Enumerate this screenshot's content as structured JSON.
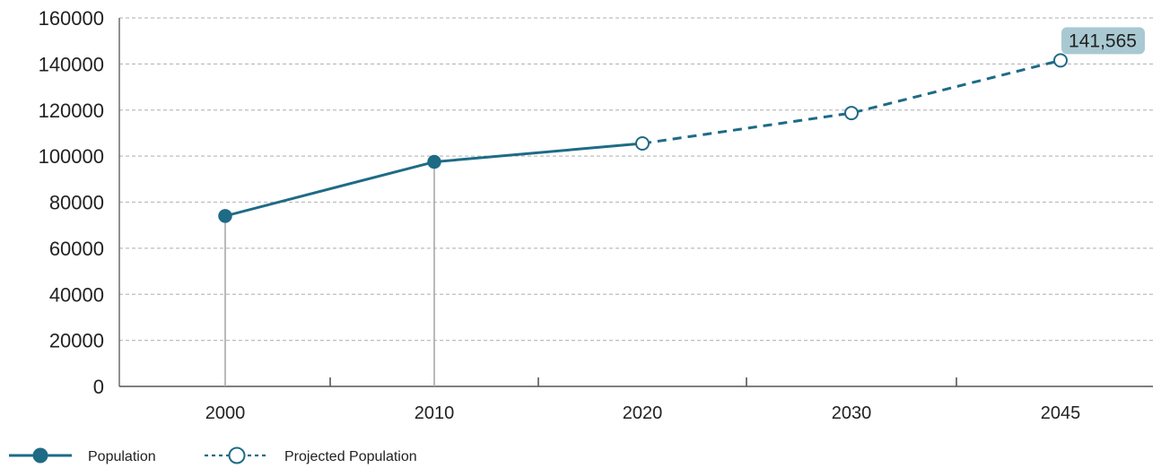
{
  "chart_data": {
    "type": "line",
    "categories": [
      "2000",
      "2010",
      "2020",
      "2030",
      "2045"
    ],
    "ylim": [
      0,
      160000
    ],
    "yticks": [
      "0",
      "20000",
      "40000",
      "60000",
      "80000",
      "100000",
      "120000",
      "140000",
      "160000"
    ],
    "grid": true,
    "legend_position": "bottom-left",
    "series": [
      {
        "name": "Population",
        "style": "solid",
        "marker": "filled-circle",
        "points": [
          {
            "x": "2000",
            "y": 74000
          },
          {
            "x": "2010",
            "y": 97500
          },
          {
            "x": "2020",
            "y": 105500
          }
        ]
      },
      {
        "name": "Projected Population",
        "style": "dashed",
        "marker": "hollow-circle",
        "points": [
          {
            "x": "2020",
            "y": 105500
          },
          {
            "x": "2030",
            "y": 118700
          },
          {
            "x": "2045",
            "y": 141565
          }
        ]
      }
    ],
    "annotation": {
      "x": "2045",
      "y": 141565,
      "text": "141,565"
    },
    "colors": {
      "line": "#1e6b86",
      "grid": "#bdbdbd",
      "axis": "#555555",
      "drop_line": "#a9a9a9",
      "annotation_bg": "#a9c9d2",
      "text": "#222222"
    }
  }
}
